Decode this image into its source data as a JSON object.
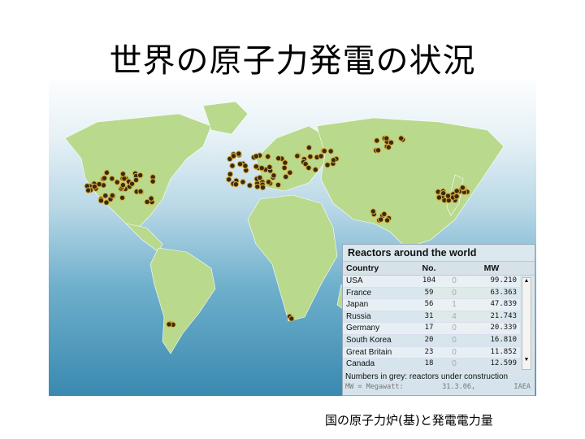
{
  "title": "世界の原子力発電の状況",
  "caption": "国の原子力炉(基)と発電電力量",
  "colors": {
    "land": "#b9d98c",
    "reactor": "#3a2a10",
    "ocean": "#3a89b0"
  },
  "panel": {
    "title": "Reactors around the world",
    "headers": {
      "country": "Country",
      "no": "No.",
      "mw": "MW"
    },
    "rows": [
      {
        "country": "USA",
        "no": "104",
        "construction": "0",
        "mw": "99.210"
      },
      {
        "country": "France",
        "no": "59",
        "construction": "0",
        "mw": "63.363"
      },
      {
        "country": "Japan",
        "no": "56",
        "construction": "1",
        "mw": "47.839"
      },
      {
        "country": "Russia",
        "no": "31",
        "construction": "4",
        "mw": "21.743"
      },
      {
        "country": "Germany",
        "no": "17",
        "construction": "0",
        "mw": "20.339"
      },
      {
        "country": "South Korea",
        "no": "20",
        "construction": "0",
        "mw": "16.810"
      },
      {
        "country": "Great Britain",
        "no": "23",
        "construction": "0",
        "mw": "11.852"
      },
      {
        "country": "Canada",
        "no": "18",
        "construction": "0",
        "mw": "12.599"
      }
    ],
    "note": "Numbers in grey: reactors under construction",
    "footer": {
      "legend": "MW = Megawatt:",
      "date": "31.3.06,",
      "source": "IAEA"
    }
  }
}
